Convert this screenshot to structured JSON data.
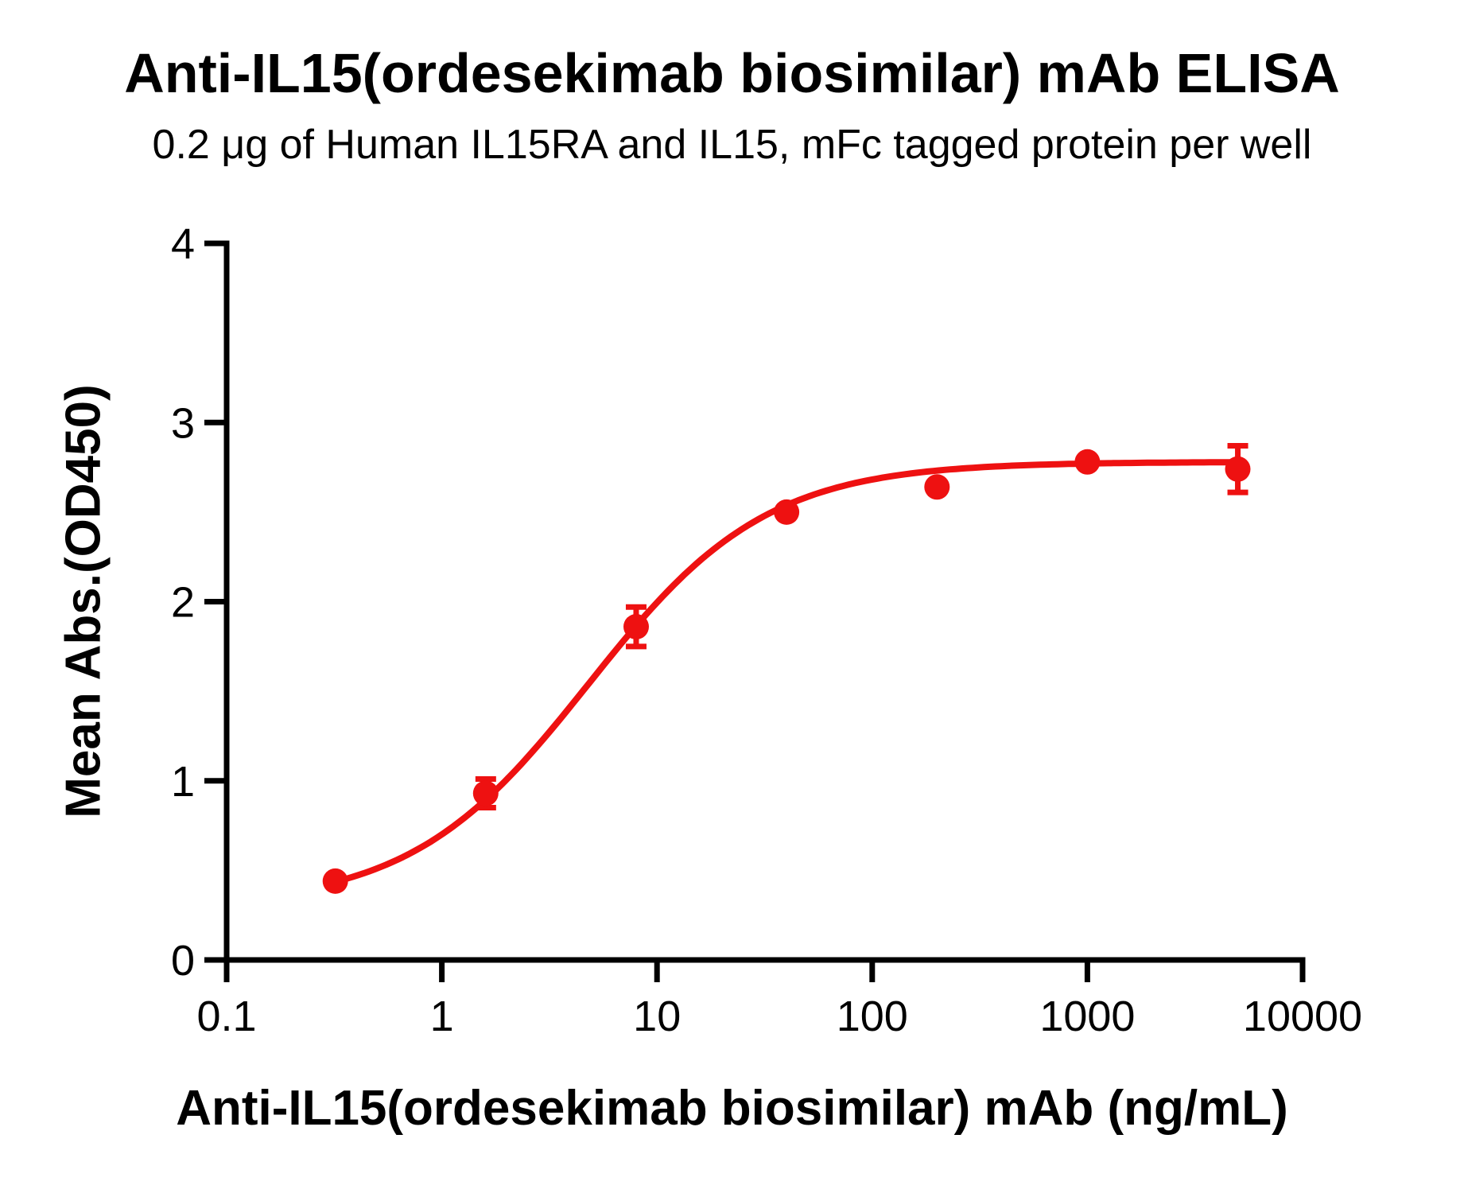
{
  "chart_data": {
    "type": "scatter",
    "title": "Anti-IL15(ordesekimab biosimilar) mAb ELISA",
    "subtitle": "0.2 μg of Human IL15RA and IL15, mFc tagged protein per well",
    "xlabel": "Anti-IL15(ordesekimab biosimilar) mAb (ng/mL)",
    "ylabel": "Mean Abs.(OD450)",
    "x_scale": "log10",
    "xlim": [
      0.1,
      10000
    ],
    "ylim": [
      0,
      4
    ],
    "x_ticks": [
      0.1,
      1,
      10,
      100,
      1000,
      10000
    ],
    "x_tick_labels": [
      "0.1",
      "1",
      "10",
      "100",
      "1000",
      "10000"
    ],
    "y_ticks": [
      0,
      1,
      2,
      3,
      4
    ],
    "y_tick_labels": [
      "0",
      "1",
      "2",
      "3",
      "4"
    ],
    "grid": false,
    "legend": false,
    "series": [
      {
        "name": "Anti-IL15(ordesekimab biosimilar) mAb",
        "marker": "circle",
        "color": "#EE1111",
        "x": [
          0.32,
          1.6,
          8,
          40,
          200,
          1000,
          5000
        ],
        "y": [
          0.44,
          0.93,
          1.86,
          2.5,
          2.64,
          2.78,
          2.74
        ],
        "y_err": [
          0,
          0.08,
          0.11,
          0,
          0,
          0,
          0.13
        ]
      }
    ],
    "fit_curve": {
      "model": "4PL",
      "bottom": 0.3,
      "top": 2.78,
      "ec50": 4.8,
      "hill": 1.05,
      "x_range": [
        0.32,
        5000
      ]
    }
  },
  "colors": {
    "series": "#EE1111",
    "axis": "#000000",
    "background": "#FFFFFF"
  }
}
